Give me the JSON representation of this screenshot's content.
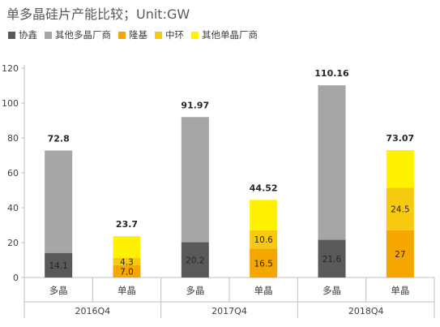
{
  "title": "单多晶硅片产能比较；Unit:GW",
  "colors": {
    "协鑫": "#595959",
    "其他多晶厂商": "#a6a6a6",
    "隆基": "#f5a600",
    "中环": "#f7c90f",
    "其他单晶厂商": "#fef200"
  },
  "chart_data": {
    "type": "bar",
    "stacked": true,
    "ylim": [
      0,
      120
    ],
    "yticks": [
      0,
      20,
      40,
      60,
      80,
      100,
      120
    ],
    "groups": [
      "2016Q4",
      "2017Q4",
      "2018Q4"
    ],
    "categories": [
      "多晶",
      "单晶",
      "多晶",
      "单晶",
      "多晶",
      "单晶"
    ],
    "series": [
      {
        "name": "协鑫",
        "values": [
          14.1,
          0,
          20.2,
          0,
          21.6,
          0
        ],
        "labels": [
          "14.1",
          "",
          "20.2",
          "",
          "21.6",
          ""
        ]
      },
      {
        "name": "其他多晶厂商",
        "values": [
          58.7,
          0,
          71.77,
          0,
          88.56,
          0
        ],
        "labels": [
          "",
          "",
          "",
          "",
          "",
          ""
        ]
      },
      {
        "name": "隆基",
        "values": [
          0,
          7.0,
          0,
          16.5,
          0,
          27
        ],
        "labels": [
          "",
          "7.0",
          "",
          "16.5",
          "",
          "27"
        ]
      },
      {
        "name": "中环",
        "values": [
          0,
          4.3,
          0,
          10.6,
          0,
          24.5
        ],
        "labels": [
          "",
          "4.3",
          "",
          "10.6",
          "",
          "24.5"
        ]
      },
      {
        "name": "其他单晶厂商",
        "values": [
          0,
          12.4,
          0,
          17.42,
          0,
          21.57
        ],
        "labels": [
          "",
          "",
          "",
          "",
          "",
          ""
        ]
      }
    ],
    "totals": [
      "72.8",
      "23.7",
      "91.97",
      "44.52",
      "110.16",
      "73.07"
    ],
    "legend_position": "top-left",
    "grid": false
  }
}
